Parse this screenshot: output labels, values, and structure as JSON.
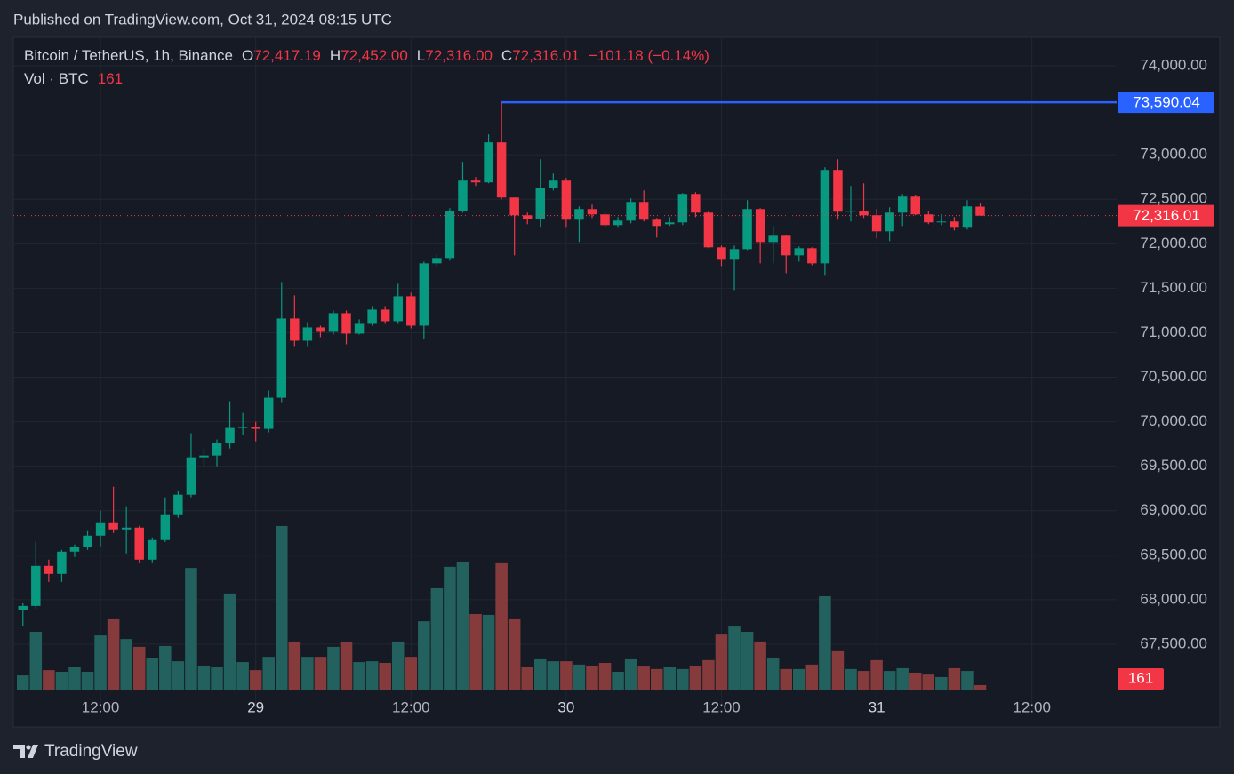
{
  "header": {
    "published": "Published on TradingView.com, Oct 31, 2024 08:15 UTC"
  },
  "footer": {
    "brand": "TradingView"
  },
  "chart_data": {
    "type": "candlestick",
    "symbol": "Bitcoin / TetherUS, 1h, Binance",
    "readout": [
      {
        "key": "O",
        "text": "72,417.19"
      },
      {
        "key": "H",
        "text": "72,452.00"
      },
      {
        "key": "L",
        "text": "72,316.00"
      },
      {
        "key": "C",
        "text": "72,316.01"
      }
    ],
    "change": "−101.18 (−0.14%)",
    "volume_title": "Vol · BTC",
    "volume_readout": "161",
    "x": [
      6,
      7,
      8,
      9,
      10,
      11,
      12,
      13,
      14,
      15,
      16,
      17,
      18,
      19,
      20,
      21,
      22,
      23,
      24,
      25,
      26,
      27,
      28,
      29,
      30,
      31,
      32,
      33,
      34,
      35,
      36,
      37,
      38,
      39,
      40,
      41,
      42,
      43,
      44,
      45,
      46,
      47,
      48,
      49,
      50,
      51,
      52,
      53,
      54,
      55,
      56,
      57,
      58,
      59,
      60,
      61,
      62,
      63,
      64,
      65,
      66,
      67,
      68,
      69,
      70,
      71,
      72,
      73,
      74,
      75,
      76,
      77,
      78,
      79,
      80
    ],
    "open": [
      67880,
      67930,
      68380,
      68290,
      68540,
      68590,
      68720,
      68870,
      68790,
      68810,
      68450,
      68670,
      68960,
      69180,
      69600,
      69620,
      69760,
      69930,
      69940,
      69920,
      70270,
      71160,
      70910,
      71060,
      71010,
      71220,
      70990,
      71100,
      71260,
      71130,
      71410,
      71080,
      71780,
      71840,
      72370,
      72710,
      72690,
      73140,
      72520,
      72320,
      72280,
      72630,
      72710,
      72270,
      72390,
      72330,
      72210,
      72260,
      72470,
      72270,
      72220,
      72240,
      72560,
      72350,
      71960,
      71820,
      71940,
      72390,
      72020,
      72090,
      71870,
      71950,
      71780,
      72830,
      72360,
      72370,
      72320,
      72140,
      72350,
      72530,
      72330,
      72240,
      72250,
      72180,
      72417.19
    ],
    "high": [
      67960,
      68650,
      68450,
      68560,
      68620,
      68780,
      69000,
      69270,
      69050,
      68830,
      68700,
      69150,
      69220,
      69870,
      69700,
      69800,
      70230,
      70100,
      70000,
      70350,
      71570,
      71420,
      71120,
      71080,
      71250,
      71250,
      71150,
      71300,
      71300,
      71550,
      71450,
      71800,
      71880,
      72400,
      72920,
      72750,
      73230,
      73590.04,
      72520,
      72350,
      72950,
      72790,
      72740,
      72420,
      72440,
      72350,
      72300,
      72510,
      72600,
      72290,
      72300,
      72570,
      72580,
      72370,
      71980,
      71980,
      72490,
      72400,
      72200,
      72100,
      71970,
      71960,
      72860,
      72950,
      72650,
      72680,
      72390,
      72410,
      72560,
      72550,
      72370,
      72330,
      72300,
      72490,
      72452
    ],
    "low": [
      67700,
      67900,
      68200,
      68200,
      68480,
      68560,
      68600,
      68750,
      68520,
      68410,
      68420,
      68650,
      68920,
      69150,
      69500,
      69500,
      69700,
      69850,
      69780,
      69880,
      70220,
      70850,
      70850,
      70950,
      70980,
      70870,
      70980,
      71080,
      71100,
      71100,
      71050,
      70930,
      71750,
      71810,
      72350,
      72650,
      72680,
      72500,
      71870,
      72220,
      72180,
      72600,
      72180,
      72020,
      72290,
      72180,
      72180,
      72230,
      72250,
      72070,
      72200,
      72210,
      72300,
      71950,
      71750,
      71480,
      71930,
      71780,
      71780,
      71670,
      71800,
      71760,
      71640,
      72270,
      72250,
      72290,
      72060,
      72030,
      72200,
      72320,
      72220,
      72210,
      72150,
      72160,
      72316
    ],
    "close": [
      67930,
      68380,
      68290,
      68540,
      68590,
      68720,
      68870,
      68790,
      68810,
      68450,
      68670,
      68960,
      69180,
      69600,
      69620,
      69760,
      69930,
      69940,
      69920,
      70270,
      71160,
      70910,
      71060,
      71010,
      71220,
      70990,
      71100,
      71260,
      71130,
      71410,
      71080,
      71780,
      71840,
      72370,
      72710,
      72690,
      73140,
      72520,
      72320,
      72280,
      72630,
      72710,
      72270,
      72390,
      72330,
      72210,
      72260,
      72470,
      72270,
      72200,
      72240,
      72560,
      72350,
      71960,
      71820,
      71940,
      72390,
      72020,
      72090,
      71870,
      71950,
      71780,
      72830,
      72360,
      72370,
      72320,
      72140,
      72350,
      72530,
      72330,
      72240,
      72250,
      72180,
      72420,
      72316.01
    ],
    "volume": [
      510,
      2080,
      700,
      640,
      800,
      640,
      1950,
      2530,
      1820,
      1540,
      1120,
      1570,
      1020,
      4380,
      860,
      800,
      3460,
      990,
      700,
      1180,
      5890,
      1730,
      1180,
      1180,
      1540,
      1700,
      990,
      1020,
      960,
      1730,
      1180,
      2460,
      3650,
      4420,
      4610,
      2720,
      2690,
      4580,
      2530,
      800,
      1090,
      1020,
      1020,
      900,
      860,
      960,
      640,
      1090,
      830,
      740,
      800,
      740,
      860,
      1060,
      1980,
      2270,
      2080,
      1730,
      1150,
      740,
      740,
      900,
      3360,
      1380,
      740,
      670,
      1060,
      670,
      770,
      610,
      540,
      450,
      770,
      670,
      161
    ],
    "xlim": [
      5.26,
      90.55
    ],
    "xticks": [
      {
        "value": 12,
        "label": "12:00"
      },
      {
        "value": 24,
        "label": "29"
      },
      {
        "value": 36,
        "label": "12:00"
      },
      {
        "value": 48,
        "label": "30"
      },
      {
        "value": 60,
        "label": "12:00"
      },
      {
        "value": 72,
        "label": "31"
      },
      {
        "value": 84,
        "label": "12:00"
      }
    ],
    "ylim": [
      66990,
      74320
    ],
    "yticks": [
      {
        "value": 67500,
        "label": "67,500.00"
      },
      {
        "value": 68000,
        "label": "68,000.00"
      },
      {
        "value": 68500,
        "label": "68,500.00"
      },
      {
        "value": 69000,
        "label": "69,000.00"
      },
      {
        "value": 69500,
        "label": "69,500.00"
      },
      {
        "value": 70000,
        "label": "70,000.00"
      },
      {
        "value": 70500,
        "label": "70,500.00"
      },
      {
        "value": 71000,
        "label": "71,000.00"
      },
      {
        "value": 71500,
        "label": "71,500.00"
      },
      {
        "value": 72000,
        "label": "72,000.00"
      },
      {
        "value": 72500,
        "label": "72,500.00"
      },
      {
        "value": 73000,
        "label": "73,000.00"
      },
      {
        "value": 74000,
        "label": "74,000.00"
      }
    ],
    "volume_ylim": [
      0,
      6400
    ],
    "high_marker": {
      "value": 73590.04,
      "label": "73,590.04"
    },
    "last_price": {
      "value": 72316.01,
      "label": "72,316.01"
    },
    "last_volume": 161,
    "grid": true,
    "up_color": "#089981",
    "down_color": "#f23645",
    "vol_up_color": "#22615d",
    "vol_down_color": "#853a3b",
    "high_line_color": "#2962ff"
  }
}
